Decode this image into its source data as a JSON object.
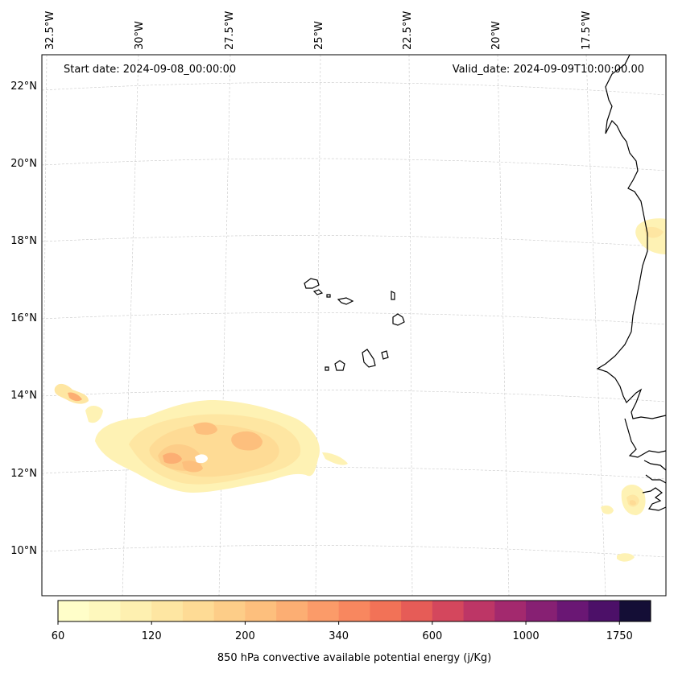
{
  "map": {
    "start_date": "Start date: 2024-09-08_00:00:00",
    "valid_date": "Valid_date: 2024-09-09T10:00:00.00",
    "longitude_labels": [
      "32.5°W",
      "30°W",
      "27.5°W",
      "25°W",
      "22.5°W",
      "20°W",
      "17.5°W"
    ],
    "latitude_labels": [
      "22°N",
      "20°N",
      "18°N",
      "16°N",
      "14°N",
      "12°N",
      "10°N"
    ]
  },
  "colorbar": {
    "label": "850 hPa convective available potential energy (j/Kg)",
    "ticks": [
      "60",
      "120",
      "200",
      "340",
      "600",
      "1000",
      "1750"
    ],
    "colors": [
      "#fffec9",
      "#fef8bd",
      "#fef0b0",
      "#fee6a2",
      "#fedb95",
      "#fdcd88",
      "#fdbf7d",
      "#fcae73",
      "#fb9b69",
      "#f8875f",
      "#f27257",
      "#e65c57",
      "#d4475d",
      "#bd3666",
      "#a3296e",
      "#872073",
      "#6a1774",
      "#4c1068",
      "#140e36"
    ]
  }
}
